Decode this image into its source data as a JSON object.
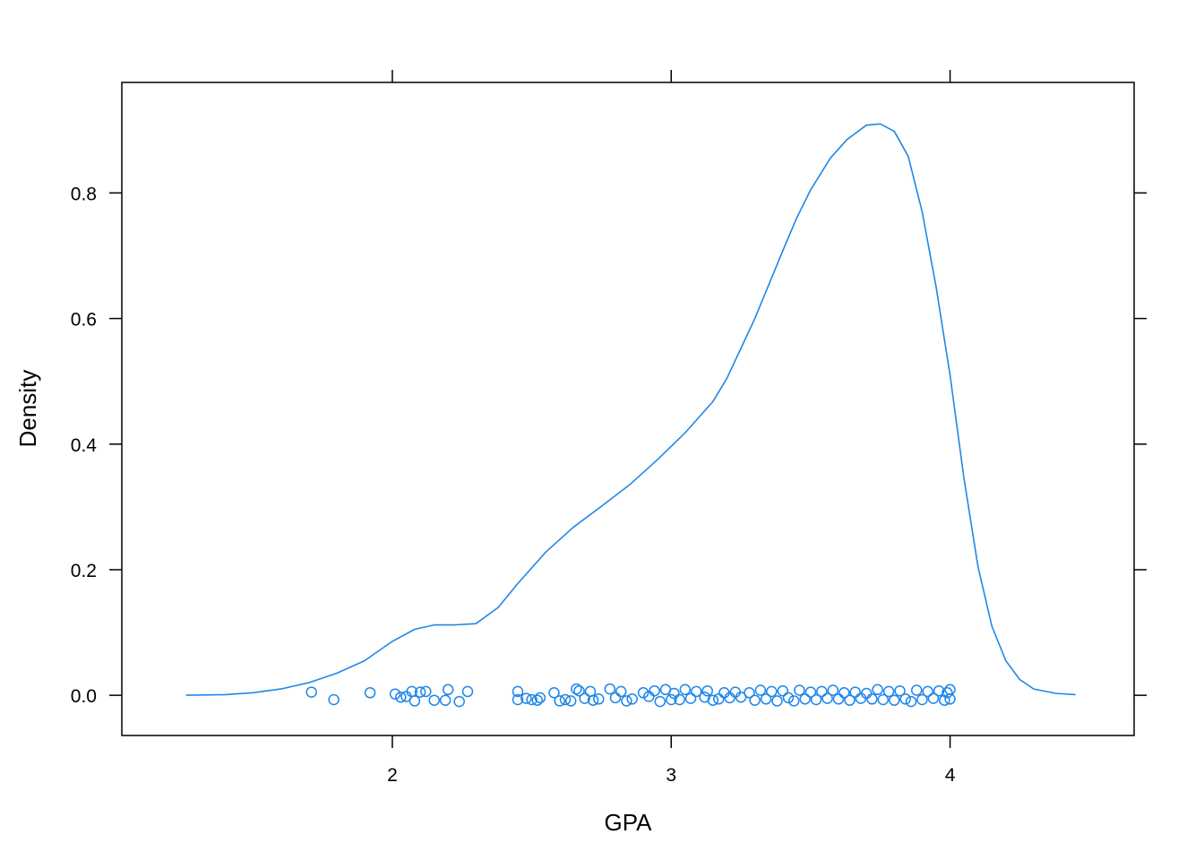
{
  "chart_data": {
    "type": "density",
    "xlabel": "GPA",
    "ylabel": "Density",
    "xlim": [
      1.03,
      4.66
    ],
    "ylim": [
      -0.064,
      0.976
    ],
    "x_ticks": [
      {
        "value": 2,
        "label": "2"
      },
      {
        "value": 3,
        "label": "3"
      },
      {
        "value": 4,
        "label": "4"
      }
    ],
    "y_ticks": [
      {
        "value": 0.0,
        "label": "0.0"
      },
      {
        "value": 0.2,
        "label": "0.2"
      },
      {
        "value": 0.4,
        "label": "0.4"
      },
      {
        "value": 0.6,
        "label": "0.6"
      },
      {
        "value": 0.8,
        "label": "0.8"
      }
    ],
    "grid": false,
    "series": [
      {
        "kind": "density-curve",
        "color": "#1f87e8",
        "points": [
          [
            1.26,
            0.0
          ],
          [
            1.4,
            0.001
          ],
          [
            1.5,
            0.004
          ],
          [
            1.6,
            0.01
          ],
          [
            1.7,
            0.02
          ],
          [
            1.8,
            0.035
          ],
          [
            1.9,
            0.055
          ],
          [
            2.0,
            0.086
          ],
          [
            2.08,
            0.105
          ],
          [
            2.15,
            0.112
          ],
          [
            2.22,
            0.112
          ],
          [
            2.3,
            0.114
          ],
          [
            2.38,
            0.14
          ],
          [
            2.45,
            0.178
          ],
          [
            2.55,
            0.228
          ],
          [
            2.65,
            0.268
          ],
          [
            2.75,
            0.301
          ],
          [
            2.85,
            0.335
          ],
          [
            2.95,
            0.375
          ],
          [
            3.05,
            0.418
          ],
          [
            3.15,
            0.468
          ],
          [
            3.2,
            0.505
          ],
          [
            3.3,
            0.6
          ],
          [
            3.4,
            0.708
          ],
          [
            3.45,
            0.76
          ],
          [
            3.5,
            0.805
          ],
          [
            3.57,
            0.855
          ],
          [
            3.63,
            0.885
          ],
          [
            3.7,
            0.908
          ],
          [
            3.75,
            0.91
          ],
          [
            3.8,
            0.898
          ],
          [
            3.85,
            0.858
          ],
          [
            3.9,
            0.77
          ],
          [
            3.95,
            0.65
          ],
          [
            4.0,
            0.51
          ],
          [
            4.05,
            0.345
          ],
          [
            4.1,
            0.205
          ],
          [
            4.15,
            0.11
          ],
          [
            4.2,
            0.055
          ],
          [
            4.25,
            0.025
          ],
          [
            4.3,
            0.01
          ],
          [
            4.38,
            0.003
          ],
          [
            4.45,
            0.001
          ]
        ]
      },
      {
        "kind": "rug-points",
        "color": "#1f87e8",
        "points": [
          [
            1.71,
            0.005
          ],
          [
            1.79,
            -0.007
          ],
          [
            1.92,
            0.004
          ],
          [
            2.01,
            0.002
          ],
          [
            2.03,
            -0.003
          ],
          [
            2.05,
            -0.002
          ],
          [
            2.07,
            0.006
          ],
          [
            2.08,
            -0.009
          ],
          [
            2.1,
            0.005
          ],
          [
            2.12,
            0.006
          ],
          [
            2.15,
            -0.008
          ],
          [
            2.19,
            -0.008
          ],
          [
            2.2,
            0.009
          ],
          [
            2.24,
            -0.01
          ],
          [
            2.27,
            0.006
          ],
          [
            2.45,
            0.006
          ],
          [
            2.45,
            -0.007
          ],
          [
            2.48,
            -0.005
          ],
          [
            2.5,
            -0.007
          ],
          [
            2.52,
            -0.008
          ],
          [
            2.53,
            -0.004
          ],
          [
            2.58,
            0.004
          ],
          [
            2.6,
            -0.009
          ],
          [
            2.62,
            -0.007
          ],
          [
            2.64,
            -0.009
          ],
          [
            2.66,
            0.01
          ],
          [
            2.67,
            0.007
          ],
          [
            2.69,
            -0.005
          ],
          [
            2.71,
            0.006
          ],
          [
            2.72,
            -0.008
          ],
          [
            2.74,
            -0.006
          ],
          [
            2.78,
            0.01
          ],
          [
            2.8,
            -0.004
          ],
          [
            2.82,
            0.006
          ],
          [
            2.84,
            -0.009
          ],
          [
            2.86,
            -0.006
          ],
          [
            2.9,
            0.004
          ],
          [
            2.92,
            -0.002
          ],
          [
            2.94,
            0.007
          ],
          [
            2.96,
            -0.01
          ],
          [
            2.98,
            0.009
          ],
          [
            3.0,
            -0.007
          ],
          [
            3.01,
            0.003
          ],
          [
            3.03,
            -0.007
          ],
          [
            3.05,
            0.009
          ],
          [
            3.07,
            -0.005
          ],
          [
            3.09,
            0.006
          ],
          [
            3.12,
            -0.003
          ],
          [
            3.13,
            0.007
          ],
          [
            3.15,
            -0.008
          ],
          [
            3.17,
            -0.006
          ],
          [
            3.19,
            0.004
          ],
          [
            3.21,
            -0.004
          ],
          [
            3.23,
            0.005
          ],
          [
            3.25,
            -0.003
          ],
          [
            3.28,
            0.004
          ],
          [
            3.3,
            -0.008
          ],
          [
            3.32,
            0.008
          ],
          [
            3.34,
            -0.006
          ],
          [
            3.36,
            0.006
          ],
          [
            3.38,
            -0.009
          ],
          [
            3.4,
            0.007
          ],
          [
            3.42,
            -0.004
          ],
          [
            3.44,
            -0.009
          ],
          [
            3.46,
            0.008
          ],
          [
            3.48,
            -0.006
          ],
          [
            3.5,
            0.005
          ],
          [
            3.52,
            -0.007
          ],
          [
            3.54,
            0.006
          ],
          [
            3.56,
            -0.005
          ],
          [
            3.58,
            0.008
          ],
          [
            3.6,
            -0.006
          ],
          [
            3.62,
            0.004
          ],
          [
            3.64,
            -0.008
          ],
          [
            3.66,
            0.005
          ],
          [
            3.68,
            -0.005
          ],
          [
            3.7,
            0.003
          ],
          [
            3.72,
            -0.006
          ],
          [
            3.74,
            0.009
          ],
          [
            3.76,
            -0.007
          ],
          [
            3.78,
            0.006
          ],
          [
            3.8,
            -0.008
          ],
          [
            3.82,
            0.007
          ],
          [
            3.84,
            -0.006
          ],
          [
            3.86,
            -0.01
          ],
          [
            3.88,
            0.008
          ],
          [
            3.9,
            -0.007
          ],
          [
            3.92,
            0.006
          ],
          [
            3.94,
            -0.005
          ],
          [
            3.96,
            0.007
          ],
          [
            3.98,
            -0.008
          ],
          [
            3.99,
            0.004
          ],
          [
            4.0,
            0.009
          ],
          [
            4.0,
            -0.006
          ]
        ]
      }
    ]
  }
}
